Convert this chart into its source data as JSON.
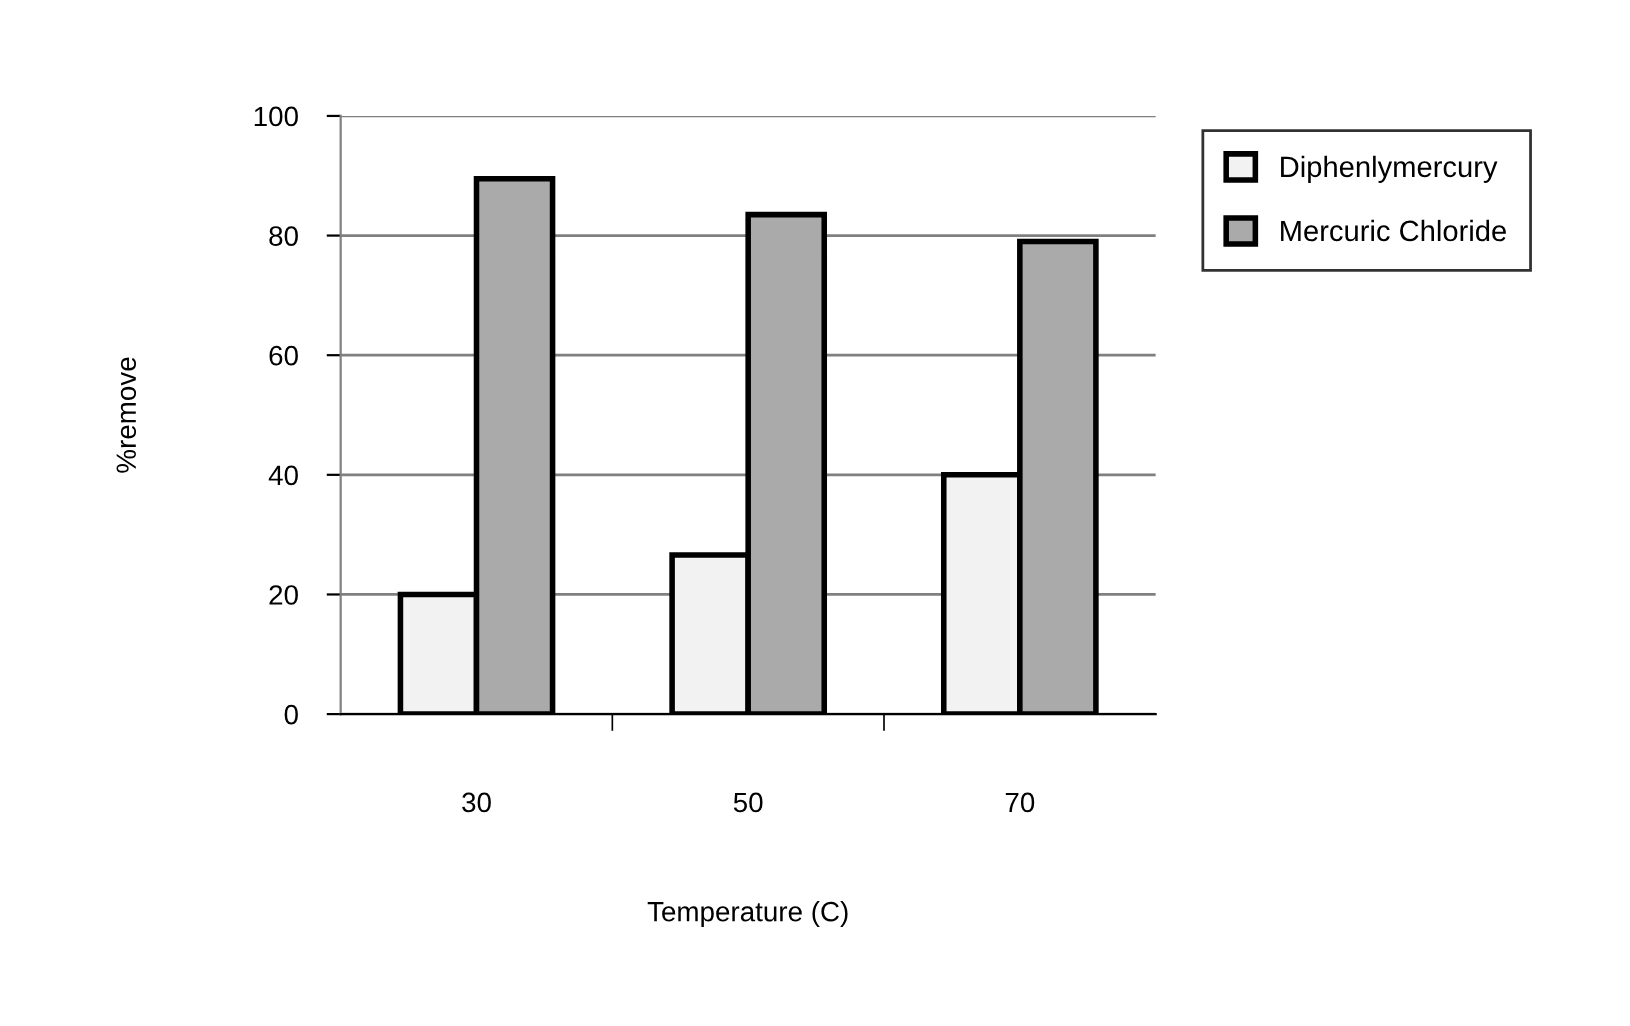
{
  "chart_data": {
    "type": "bar",
    "xlabel": "Temperature (C)",
    "ylabel": "%remove",
    "categories": [
      "30",
      "50",
      "70"
    ],
    "series": [
      {
        "name": "Diphenlymercury",
        "color": "#f2f2f2",
        "values": [
          20,
          26.6,
          40
        ]
      },
      {
        "name": "Mercuric Chloride",
        "color": "#aaaaaa",
        "values": [
          89.5,
          83.5,
          79
        ]
      }
    ],
    "ylim": [
      0,
      100
    ],
    "yticks": [
      0,
      20,
      40,
      60,
      80,
      100
    ],
    "grid": "y",
    "legend": "top right"
  }
}
